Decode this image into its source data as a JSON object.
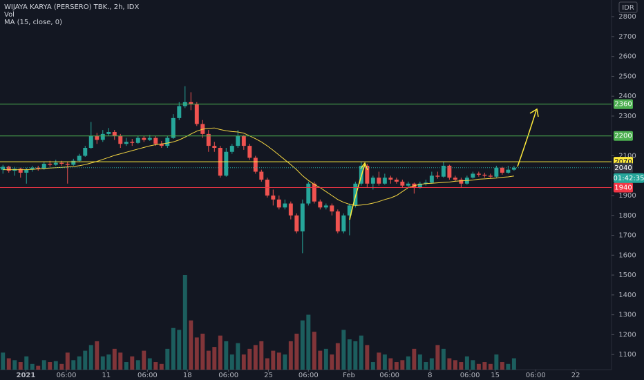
{
  "chart_data": {
    "type": "candlestick",
    "title": "WIJAYA KARYA (PERSERO) TBK., 2h, IDX",
    "indicators": [
      "Vol",
      "MA (15, close, 0)"
    ],
    "currency": "IDR",
    "open": [
      2030,
      2045,
      2025,
      2035,
      2015,
      2030,
      2040,
      2035,
      2060,
      2055,
      2065,
      2060,
      2055,
      2075,
      2100,
      2140,
      2200,
      2180,
      2210,
      2220,
      2200,
      2160,
      2170,
      2165,
      2190,
      2180,
      2190,
      2160,
      2150,
      2190,
      2290,
      2350,
      2370,
      2360,
      2260,
      2210,
      2150,
      2140,
      2000,
      2120,
      2150,
      2200,
      2150,
      2090,
      2020,
      1980,
      1900,
      1880,
      1840,
      1860,
      1800,
      1720,
      1860,
      1960,
      1870,
      1840,
      1850,
      1820,
      1720,
      1800,
      1850,
      1960,
      2050,
      1960,
      1990,
      1960,
      1990,
      1980,
      1970,
      1950,
      1960,
      1940,
      1960,
      1965,
      2000,
      1995,
      2050,
      1990,
      1980,
      1960,
      1990,
      2010,
      2005,
      2000,
      1995,
      2040,
      2015,
      2030
    ],
    "high": [
      2055,
      2050,
      2045,
      2040,
      2040,
      2050,
      2050,
      2070,
      2075,
      2080,
      2075,
      2070,
      2085,
      2110,
      2150,
      2270,
      2215,
      2230,
      2240,
      2230,
      2210,
      2190,
      2185,
      2200,
      2200,
      2205,
      2200,
      2175,
      2200,
      2310,
      2370,
      2450,
      2420,
      2370,
      2280,
      2230,
      2170,
      2150,
      2140,
      2160,
      2230,
      2205,
      2160,
      2100,
      2030,
      1990,
      1930,
      1900,
      1880,
      1870,
      1810,
      1880,
      1970,
      1970,
      1880,
      1860,
      1860,
      1830,
      1810,
      1860,
      1970,
      2070,
      2060,
      2000,
      2020,
      2010,
      2000,
      1990,
      1980,
      1970,
      1965,
      1970,
      1980,
      2020,
      2020,
      2070,
      2055,
      2000,
      1990,
      2000,
      2020,
      2020,
      2015,
      2010,
      2050,
      2045,
      2050,
      2050
    ],
    "low": [
      2010,
      2015,
      2000,
      1990,
      1960,
      2020,
      2025,
      2030,
      2045,
      2050,
      2050,
      1960,
      2050,
      2070,
      2095,
      2135,
      2160,
      2170,
      2200,
      2180,
      2140,
      2150,
      2150,
      2160,
      2170,
      2175,
      2150,
      2140,
      2140,
      2185,
      2280,
      2340,
      2330,
      2250,
      2190,
      2120,
      2120,
      1990,
      1995,
      2110,
      2140,
      2130,
      2080,
      2010,
      1970,
      1890,
      1850,
      1830,
      1830,
      1780,
      1710,
      1610,
      1850,
      1860,
      1830,
      1830,
      1800,
      1710,
      1710,
      1700,
      1840,
      1950,
      1940,
      1930,
      1950,
      1955,
      1960,
      1960,
      1940,
      1940,
      1910,
      1935,
      1950,
      1960,
      1985,
      1990,
      1980,
      1970,
      1940,
      1955,
      1985,
      1995,
      1990,
      1985,
      1990,
      2005,
      2010,
      2025
    ],
    "close": [
      2045,
      2025,
      2035,
      2015,
      2030,
      2040,
      2035,
      2060,
      2055,
      2065,
      2060,
      2055,
      2075,
      2100,
      2140,
      2200,
      2180,
      2210,
      2220,
      2200,
      2160,
      2170,
      2165,
      2190,
      2180,
      2190,
      2160,
      2150,
      2190,
      2290,
      2350,
      2370,
      2360,
      2260,
      2210,
      2150,
      2140,
      2000,
      2120,
      2150,
      2200,
      2150,
      2090,
      2020,
      1980,
      1900,
      1880,
      1840,
      1860,
      1800,
      1720,
      1860,
      1960,
      1870,
      1840,
      1850,
      1820,
      1720,
      1800,
      1850,
      1960,
      2050,
      1960,
      1990,
      1960,
      1990,
      1980,
      1970,
      1950,
      1960,
      1940,
      1960,
      1965,
      2000,
      1995,
      2050,
      1990,
      1980,
      1960,
      1990,
      2010,
      2005,
      2000,
      1995,
      2040,
      2015,
      2030,
      2040
    ],
    "volume": [
      18,
      12,
      10,
      8,
      14,
      6,
      4,
      10,
      8,
      9,
      6,
      18,
      10,
      14,
      20,
      26,
      30,
      14,
      16,
      22,
      18,
      8,
      14,
      10,
      20,
      12,
      8,
      6,
      22,
      44,
      42,
      100,
      52,
      34,
      38,
      20,
      24,
      36,
      30,
      16,
      28,
      16,
      22,
      26,
      30,
      12,
      20,
      18,
      16,
      30,
      38,
      52,
      58,
      40,
      20,
      22,
      16,
      28,
      42,
      32,
      30,
      36,
      26,
      8,
      18,
      16,
      12,
      8,
      10,
      14,
      22,
      16,
      8,
      12,
      26,
      22,
      12,
      10,
      8,
      14,
      10,
      6,
      8,
      6,
      16,
      8,
      6,
      12
    ],
    "volume_lim": [
      0,
      100
    ],
    "ma": [
      2030,
      2030,
      2030,
      2030,
      2030,
      2032,
      2034,
      2036,
      2038,
      2040,
      2042,
      2044,
      2046,
      2050,
      2056,
      2064,
      2072,
      2082,
      2092,
      2102,
      2110,
      2118,
      2126,
      2134,
      2142,
      2150,
      2156,
      2160,
      2164,
      2170,
      2180,
      2194,
      2210,
      2224,
      2234,
      2238,
      2240,
      2232,
      2226,
      2222,
      2220,
      2214,
      2200,
      2186,
      2170,
      2150,
      2128,
      2104,
      2080,
      2056,
      2030,
      2000,
      1976,
      1956,
      1940,
      1920,
      1900,
      1880,
      1866,
      1856,
      1850,
      1852,
      1856,
      1862,
      1870,
      1880,
      1888,
      1900,
      1920,
      1940,
      1950,
      1956,
      1960,
      1962,
      1964,
      1966,
      1968,
      1972,
      1974,
      1976,
      1978,
      1982,
      1984,
      1986,
      1988,
      1992,
      1994,
      1998
    ],
    "ylim": [
      1024,
      2884
    ],
    "yticks": [
      1100,
      1200,
      1300,
      1400,
      1500,
      1600,
      1700,
      1800,
      1900,
      2100,
      2300,
      2400,
      2500,
      2600,
      2700,
      2800
    ],
    "xlim": [
      -0.5,
      103.6
    ],
    "xticks": [
      {
        "value": 3.9,
        "label": "2021"
      },
      {
        "value": 10.8,
        "label": "06:00"
      },
      {
        "value": 17.6,
        "label": "11"
      },
      {
        "value": 24.6,
        "label": "06:00"
      },
      {
        "value": 31.4,
        "label": "18"
      },
      {
        "value": 38.4,
        "label": "06:00"
      },
      {
        "value": 45.2,
        "label": "25"
      },
      {
        "value": 52,
        "label": "06:00"
      },
      {
        "value": 58.9,
        "label": "Feb"
      },
      {
        "value": 65.8,
        "label": "06:00"
      },
      {
        "value": 72.7,
        "label": "8"
      },
      {
        "value": 79.5,
        "label": "06:00"
      },
      {
        "value": 83.8,
        "label": "15"
      },
      {
        "value": 90.7,
        "label": "06:00"
      },
      {
        "value": 97.5,
        "label": "22"
      }
    ],
    "levels": [
      {
        "value": 2360,
        "color": "#4caf50"
      },
      {
        "value": 2200,
        "color": "#4caf50"
      },
      {
        "value": 2070,
        "color": "#ffeb3b"
      },
      {
        "value": 1940,
        "color": "#f23645"
      }
    ],
    "last_price": {
      "value": 2040,
      "countdown": "01:42:35"
    },
    "up_color": "#26a69a",
    "down_color": "#ef5350",
    "ma_color": "#f5d742"
  }
}
